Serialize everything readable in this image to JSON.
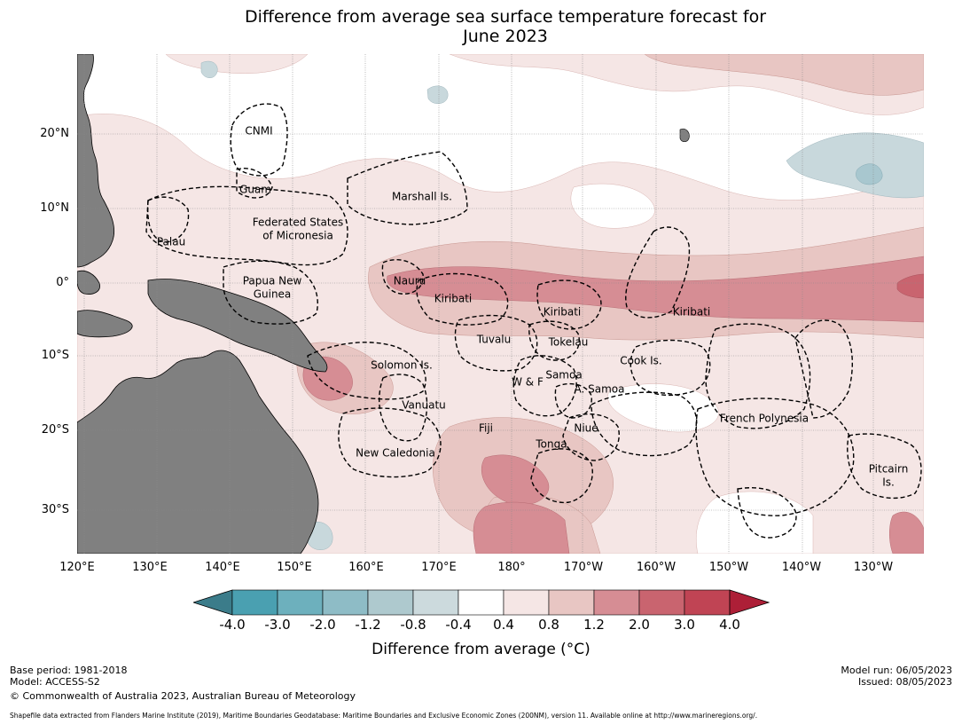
{
  "title": {
    "line1": "Difference from average sea surface temperature forecast for",
    "line2": "June 2023"
  },
  "map": {
    "lat_labels": [
      "20°N",
      "10°N",
      "0°",
      "10°S",
      "20°S",
      "30°S"
    ],
    "lon_labels": [
      "120°E",
      "130°E",
      "140°E",
      "150°E",
      "160°E",
      "170°E",
      "180°",
      "170°W",
      "160°W",
      "150°W",
      "140°W",
      "130°W"
    ],
    "eez_labels": [
      "CNMI",
      "Guam",
      "Marshall Is.",
      "Federated States",
      "of Micronesia",
      "Palau",
      "Papua New",
      "Guinea",
      "Nauru",
      "Kiribati",
      "Kiribati",
      "Kiribati",
      "Tuvalu",
      "Tokelau",
      "Solomon Is.",
      "Cook Is.",
      "Samoa",
      "W & F",
      "A. Samoa",
      "Vanuatu",
      "French Polynesia",
      "Fiji",
      "Niue",
      "Tonga",
      "New Caledonia",
      "Pitcairn",
      "Is."
    ],
    "land_color": "#808080",
    "contour_colors": [
      "#f5e6e5",
      "#e8c6c3",
      "#d68d94",
      "#c9646f",
      "#c8d8dc",
      "#a8c7cf"
    ]
  },
  "colorbar": {
    "ticks": [
      "-4.0",
      "-3.0",
      "-2.0",
      "-1.2",
      "-0.8",
      "-0.4",
      "0.4",
      "0.8",
      "1.2",
      "2.0",
      "3.0",
      "4.0"
    ],
    "colors": [
      "#3b7c8a",
      "#4aa0b1",
      "#6db0bd",
      "#8ebcc6",
      "#aec9ce",
      "#ccdadd",
      "#ffffff",
      "#f5e6e5",
      "#e8c6c3",
      "#d68d94",
      "#c9646f",
      "#c04454",
      "#ad1f37"
    ],
    "title": "Difference from average (°C)"
  },
  "footer": {
    "base_period": "Base period: 1981-2018",
    "model": "Model: ACCESS-S2",
    "model_run": "Model run: 06/05/2023",
    "issued": "Issued: 08/05/2023",
    "copyright": "© Commonwealth of Australia 2023, Australian Bureau of Meteorology",
    "shapefile": "Shapefile data extracted from Flanders Marine Institute (2019), Maritime Boundaries Geodatabase: Maritime Boundaries and Exclusive Economic Zones (200NM), version 11. Available online at http://www.marineregions.org/."
  }
}
